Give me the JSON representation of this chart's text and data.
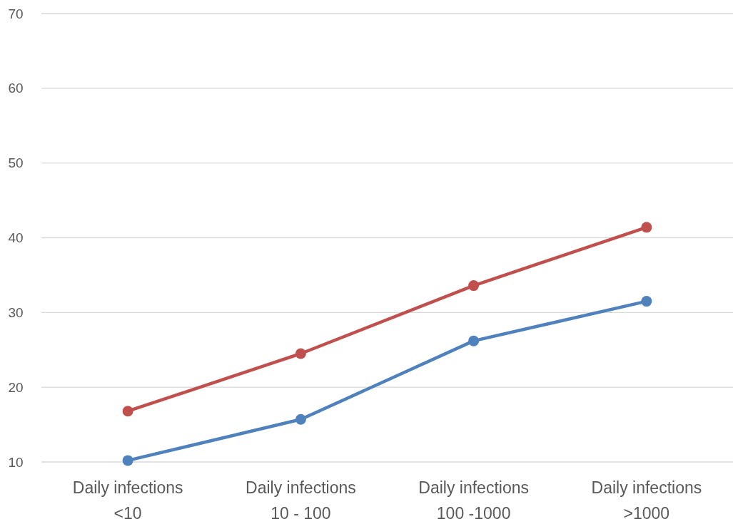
{
  "chart_data": {
    "type": "line",
    "categories": [
      "Daily infections\n<10",
      "Daily infections\n10 - 100",
      "Daily infections\n100 -1000",
      "Daily infections\n>1000"
    ],
    "series": [
      {
        "color": "#c0504d",
        "values": [
          16.8,
          24.5,
          33.6,
          41.4
        ]
      },
      {
        "color": "#4f81bd",
        "values": [
          10.2,
          15.7,
          26.2,
          31.5
        ]
      }
    ],
    "ylim": [
      10,
      70
    ],
    "yticks": [
      10,
      20,
      30,
      40,
      50,
      60,
      70
    ],
    "grid": "y",
    "marker": "circle",
    "line_style": "solid"
  }
}
